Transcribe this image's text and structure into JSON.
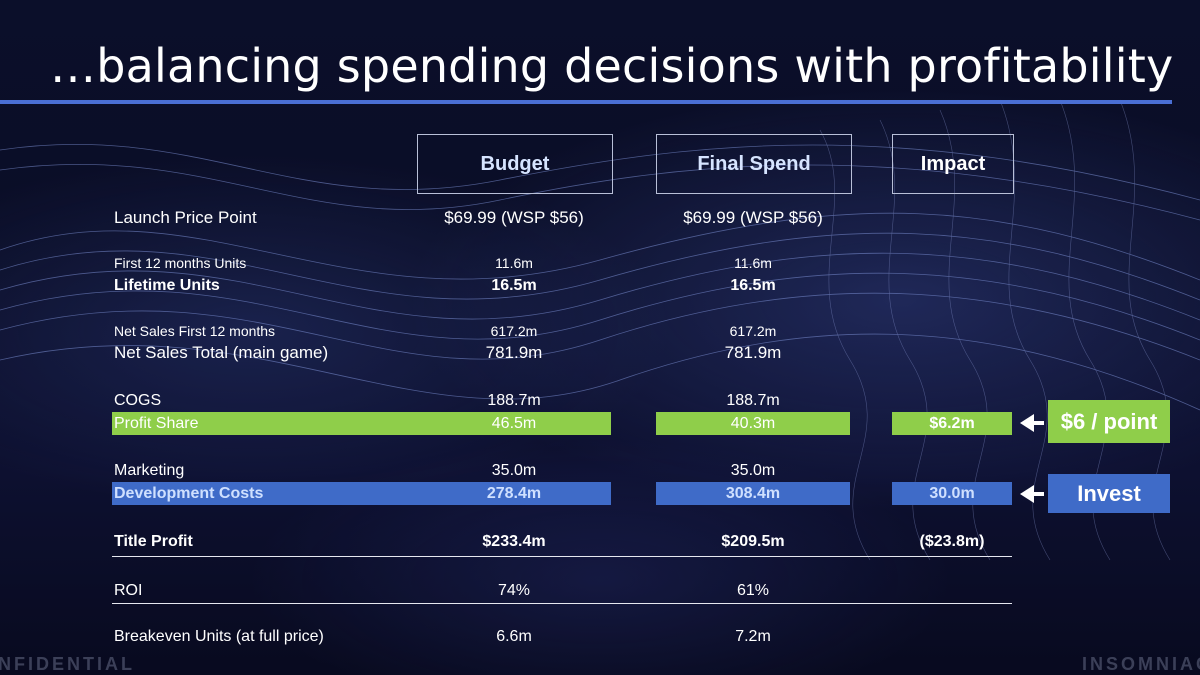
{
  "slide": {
    "title": "…balancing spending decisions with profitability"
  },
  "headers": {
    "budget": "Budget",
    "final_spend": "Final Spend",
    "impact": "Impact"
  },
  "rows": {
    "launch_price": {
      "label": "Launch Price Point",
      "budget": "$69.99 (WSP $56)",
      "final": "$69.99 (WSP $56)"
    },
    "first12_units": {
      "label": "First 12 months Units",
      "budget": "11.6m",
      "final": "11.6m"
    },
    "lifetime_units": {
      "label": "Lifetime Units",
      "budget": "16.5m",
      "final": "16.5m"
    },
    "net_sales_first12": {
      "label": "Net Sales First 12 months",
      "budget": "617.2m",
      "final": "617.2m"
    },
    "net_sales_total": {
      "label": "Net Sales Total (main game)",
      "budget": "781.9m",
      "final": "781.9m"
    },
    "cogs": {
      "label": "COGS",
      "budget": "188.7m",
      "final": "188.7m"
    },
    "profit_share": {
      "label": "Profit Share",
      "budget": "46.5m",
      "final": "40.3m",
      "impact": "$6.2m"
    },
    "marketing": {
      "label": "Marketing",
      "budget": "35.0m",
      "final": "35.0m"
    },
    "dev_costs": {
      "label": "Development Costs",
      "budget": "278.4m",
      "final": "308.4m",
      "impact": "30.0m"
    },
    "title_profit": {
      "label": "Title Profit",
      "budget": "$233.4m",
      "final": "$209.5m",
      "impact": "($23.8m)"
    },
    "roi": {
      "label": "ROI",
      "budget": "74%",
      "final": "61%"
    },
    "breakeven": {
      "label": "Breakeven Units (at full price)",
      "budget": "6.6m",
      "final": "7.2m"
    }
  },
  "callouts": {
    "profit_share": "$6 / point",
    "dev_costs": "Invest"
  },
  "footer": {
    "left": "NFIDENTIAL",
    "right": "INSOMNIAC"
  },
  "colors": {
    "green_highlight": "#8fce4a",
    "blue_highlight": "#3f6bc8",
    "title_rule": "#4a6fd4"
  }
}
